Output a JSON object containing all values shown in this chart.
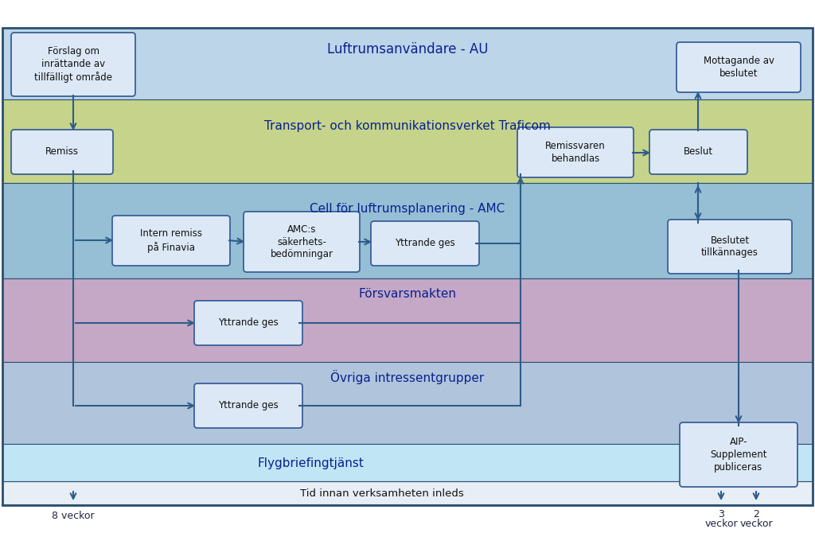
{
  "title_au": "Luftrumsanvändare - AU",
  "title_traficom": "Transport- och kommunikationsverket Traficom",
  "title_amc": "Cell för luftrumsplanering - AMC",
  "title_forsvar": "Försvarsmakten",
  "title_ovriga": "Övriga intressentgrupper",
  "title_flyg": "Flygbriefingtjänst",
  "timeline_label": "Tid innan verksamheten inleds",
  "weeks_left": "8 veckor",
  "weeks_right1": "3",
  "weeks_right2": "2",
  "veckor": "veckor",
  "boxes": {
    "forslag": "Förslag om\ninrättande av\ntillfälligt område",
    "remiss": "Remiss",
    "remissvar": "Remissvaren\nbehandlas",
    "beslut": "Beslut",
    "intern_remiss": "Intern remiss\npå Finavia",
    "amc_sak": "AMC:s\nsäkerhets-\nbedömningar",
    "yttrande_amc": "Yttrande ges",
    "beslutet": "Beslutet\ntillkännages",
    "yttrande_fors": "Yttrande ges",
    "yttrande_ovr": "Yttrande ges",
    "mottagande": "Mottagande av\nbeslutet",
    "aip": "AIP-\nSupplement\npubliceras"
  },
  "colors": {
    "au_bg": "#bcd5e8",
    "traficom_bg": "#c5d48a",
    "amc_bg": "#96bfd5",
    "forsvar_bg": "#c5a8c5",
    "ovriga_bg": "#b0c5dc",
    "flyg_bg": "#c0e5f5",
    "box_fill": "#dce8f5",
    "box_border": "#3a5f9a",
    "arrow_color": "#2e5c8a",
    "title_color": "#0a2090",
    "text_color": "#111111",
    "border_color": "#2a5070",
    "timeline_bg": "#e8eef5"
  },
  "fig_width": 10.24,
  "fig_height": 6.7
}
